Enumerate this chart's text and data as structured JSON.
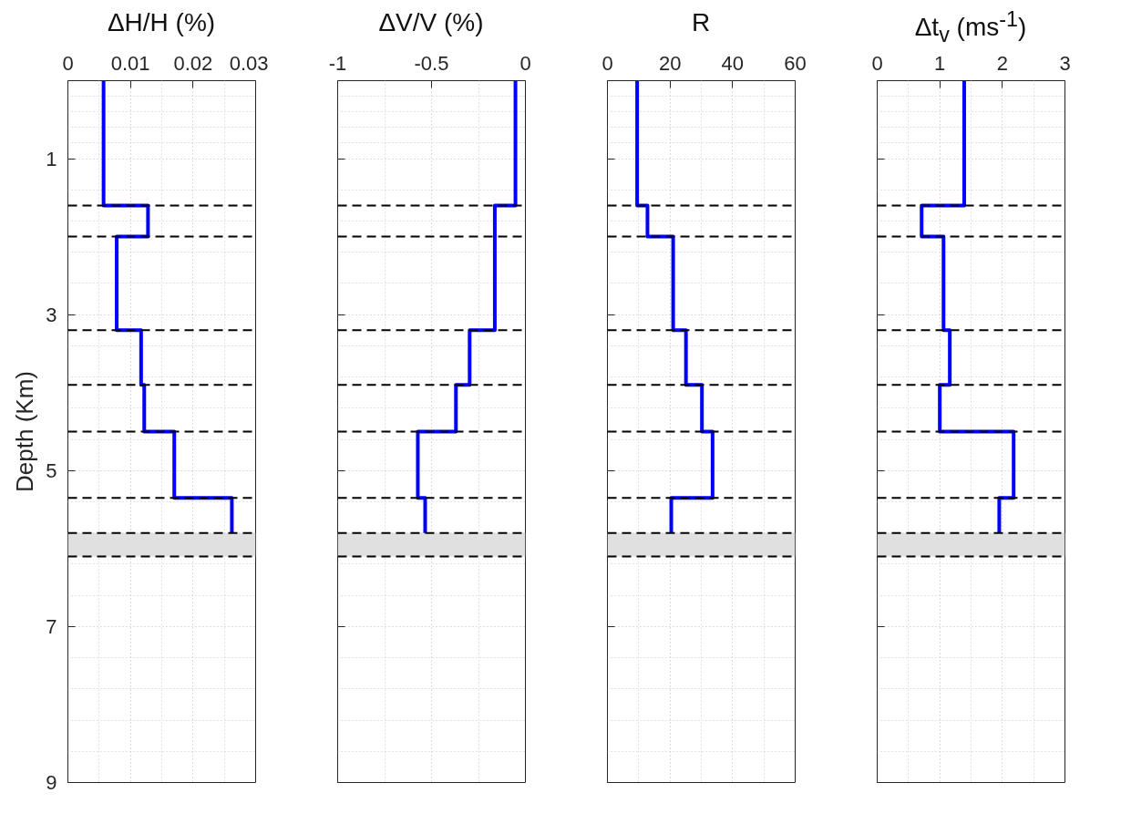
{
  "chart_data": [
    {
      "type": "line",
      "orientation": "horizontal",
      "title": "ΔH/H (%)",
      "ylabel": "Depth (Km)",
      "x": [
        0,
        1.6,
        1.6,
        2.0,
        2.0,
        3.2,
        3.2,
        3.9,
        3.9,
        4.5,
        4.5,
        5.35,
        5.35,
        5.8
      ],
      "series": [
        {
          "color": "#0000ff",
          "values": [
            0.0057,
            0.0057,
            0.0128,
            0.0128,
            0.0078,
            0.0078,
            0.0117,
            0.0117,
            0.0122,
            0.0122,
            0.017,
            0.017,
            0.0262,
            0.0262
          ]
        }
      ],
      "xlim": [
        0,
        0.03
      ],
      "xticks": [
        0,
        0.01,
        0.02,
        0.03
      ],
      "ylim": [
        9,
        0
      ],
      "yticks": [
        1,
        3,
        5,
        7,
        9
      ],
      "grid": true,
      "line_style": "solid",
      "ref_lines": [
        {
          "axis": "y",
          "value": 1.6,
          "color": "#000000",
          "line_style": "dashed"
        },
        {
          "axis": "y",
          "value": 2.0,
          "color": "#000000",
          "line_style": "dashed"
        },
        {
          "axis": "y",
          "value": 3.2,
          "color": "#000000",
          "line_style": "dashed"
        },
        {
          "axis": "y",
          "value": 3.9,
          "color": "#000000",
          "line_style": "dashed"
        },
        {
          "axis": "y",
          "value": 4.5,
          "color": "#000000",
          "line_style": "dashed"
        },
        {
          "axis": "y",
          "value": 5.35,
          "color": "#000000",
          "line_style": "dashed"
        },
        {
          "axis": "y",
          "value": 5.8,
          "color": "#000000",
          "line_style": "dashed"
        },
        {
          "axis": "y",
          "value": 6.1,
          "color": "#000000",
          "line_style": "dashed"
        }
      ],
      "bands": [
        {
          "axis": "y",
          "from": 5.8,
          "to": 6.1,
          "color": "#e0e0e0"
        }
      ]
    },
    {
      "type": "line",
      "orientation": "horizontal",
      "title": "ΔV/V (%)",
      "x": [
        0,
        1.6,
        1.6,
        2.0,
        2.0,
        3.2,
        3.2,
        3.9,
        3.9,
        4.5,
        4.5,
        5.35,
        5.35,
        5.8
      ],
      "series": [
        {
          "color": "#0000ff",
          "values": [
            -0.053,
            -0.053,
            -0.163,
            -0.163,
            -0.163,
            -0.163,
            -0.297,
            -0.297,
            -0.37,
            -0.37,
            -0.573,
            -0.573,
            -0.534,
            -0.534
          ]
        }
      ],
      "xlim": [
        -1,
        0
      ],
      "xticks": [
        -1,
        -0.5,
        0
      ],
      "ylim": [
        9,
        0
      ],
      "yticks": [
        1,
        3,
        5,
        7,
        9
      ],
      "tick_labels": "x",
      "grid": true,
      "line_style": "solid",
      "ref_lines": [
        {
          "axis": "y",
          "value": 1.6,
          "color": "#000000",
          "line_style": "dashed"
        },
        {
          "axis": "y",
          "value": 2.0,
          "color": "#000000",
          "line_style": "dashed"
        },
        {
          "axis": "y",
          "value": 3.2,
          "color": "#000000",
          "line_style": "dashed"
        },
        {
          "axis": "y",
          "value": 3.9,
          "color": "#000000",
          "line_style": "dashed"
        },
        {
          "axis": "y",
          "value": 4.5,
          "color": "#000000",
          "line_style": "dashed"
        },
        {
          "axis": "y",
          "value": 5.35,
          "color": "#000000",
          "line_style": "dashed"
        },
        {
          "axis": "y",
          "value": 5.8,
          "color": "#000000",
          "line_style": "dashed"
        },
        {
          "axis": "y",
          "value": 6.1,
          "color": "#000000",
          "line_style": "dashed"
        }
      ],
      "bands": [
        {
          "axis": "y",
          "from": 5.8,
          "to": 6.1,
          "color": "#e0e0e0"
        }
      ]
    },
    {
      "type": "line",
      "orientation": "horizontal",
      "title": "R",
      "x": [
        0,
        1.6,
        1.6,
        2.0,
        2.0,
        3.2,
        3.2,
        3.9,
        3.9,
        4.5,
        4.5,
        5.35,
        5.35,
        5.8
      ],
      "series": [
        {
          "color": "#0000ff",
          "values": [
            9.5,
            9.5,
            12.8,
            12.8,
            21,
            21,
            25.1,
            25.1,
            30.2,
            30.2,
            33.6,
            33.6,
            20.4,
            20.4
          ]
        }
      ],
      "xlim": [
        0,
        60
      ],
      "xticks": [
        0,
        20,
        40,
        60
      ],
      "ylim": [
        9,
        0
      ],
      "yticks": [
        1,
        3,
        5,
        7,
        9
      ],
      "tick_labels": "x",
      "grid": true,
      "line_style": "solid",
      "ref_lines": [
        {
          "axis": "y",
          "value": 1.6,
          "color": "#000000",
          "line_style": "dashed"
        },
        {
          "axis": "y",
          "value": 2.0,
          "color": "#000000",
          "line_style": "dashed"
        },
        {
          "axis": "y",
          "value": 3.2,
          "color": "#000000",
          "line_style": "dashed"
        },
        {
          "axis": "y",
          "value": 3.9,
          "color": "#000000",
          "line_style": "dashed"
        },
        {
          "axis": "y",
          "value": 4.5,
          "color": "#000000",
          "line_style": "dashed"
        },
        {
          "axis": "y",
          "value": 5.35,
          "color": "#000000",
          "line_style": "dashed"
        },
        {
          "axis": "y",
          "value": 5.8,
          "color": "#000000",
          "line_style": "dashed"
        },
        {
          "axis": "y",
          "value": 6.1,
          "color": "#000000",
          "line_style": "dashed"
        }
      ],
      "bands": [
        {
          "axis": "y",
          "from": 5.8,
          "to": 6.1,
          "color": "#e0e0e0"
        }
      ]
    },
    {
      "type": "line",
      "orientation": "horizontal",
      "title": "Δt$_{v}$ (ms$^{-1}$)",
      "x": [
        0,
        1.6,
        1.6,
        2.0,
        2.0,
        3.2,
        3.2,
        3.9,
        3.9,
        4.5,
        4.5,
        5.35,
        5.35,
        5.8
      ],
      "series": [
        {
          "color": "#0000ff",
          "values": [
            1.39,
            1.39,
            0.71,
            0.71,
            1.06,
            1.06,
            1.16,
            1.16,
            1.0,
            1.0,
            2.18,
            2.18,
            1.95,
            1.95
          ]
        }
      ],
      "xlim": [
        0,
        3
      ],
      "xticks": [
        0,
        1,
        2,
        3
      ],
      "ylim": [
        9,
        0
      ],
      "yticks": [
        1,
        3,
        5,
        7,
        9
      ],
      "tick_labels": "x",
      "grid": true,
      "line_style": "solid",
      "ref_lines": [
        {
          "axis": "y",
          "value": 1.6,
          "color": "#000000",
          "line_style": "dashed"
        },
        {
          "axis": "y",
          "value": 2.0,
          "color": "#000000",
          "line_style": "dashed"
        },
        {
          "axis": "y",
          "value": 3.2,
          "color": "#000000",
          "line_style": "dashed"
        },
        {
          "axis": "y",
          "value": 3.9,
          "color": "#000000",
          "line_style": "dashed"
        },
        {
          "axis": "y",
          "value": 4.5,
          "color": "#000000",
          "line_style": "dashed"
        },
        {
          "axis": "y",
          "value": 5.35,
          "color": "#000000",
          "line_style": "dashed"
        },
        {
          "axis": "y",
          "value": 5.8,
          "color": "#000000",
          "line_style": "dashed"
        },
        {
          "axis": "y",
          "value": 6.1,
          "color": "#000000",
          "line_style": "dashed"
        }
      ],
      "bands": [
        {
          "axis": "y",
          "from": 5.8,
          "to": 6.1,
          "color": "#e0e0e0"
        }
      ]
    }
  ]
}
